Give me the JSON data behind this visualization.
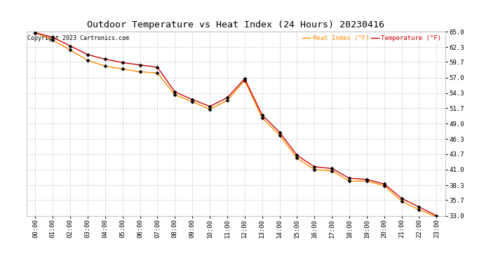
{
  "title": "Outdoor Temperature vs Heat Index (24 Hours) 20230416",
  "copyright": "Copyright 2023 Cartronics.com",
  "legend_heat_index": "Heat Index (°F)",
  "legend_temperature": "Temperature (°F)",
  "x_labels": [
    "00:00",
    "01:00",
    "02:00",
    "03:00",
    "04:00",
    "05:00",
    "06:00",
    "07:00",
    "08:00",
    "09:00",
    "10:00",
    "11:00",
    "12:00",
    "13:00",
    "14:00",
    "15:00",
    "16:00",
    "17:00",
    "18:00",
    "19:00",
    "20:00",
    "21:00",
    "22:00",
    "23:00"
  ],
  "temperature": [
    64.8,
    64.0,
    62.5,
    61.0,
    60.2,
    59.6,
    59.2,
    58.8,
    54.5,
    53.2,
    52.0,
    53.5,
    56.8,
    50.5,
    47.5,
    43.5,
    41.5,
    41.2,
    39.5,
    39.3,
    38.5,
    36.0,
    34.5,
    33.0
  ],
  "heat_index": [
    64.8,
    63.5,
    61.8,
    60.0,
    59.0,
    58.5,
    58.0,
    57.8,
    54.0,
    52.8,
    51.5,
    53.0,
    56.5,
    50.0,
    47.0,
    43.0,
    41.0,
    40.8,
    39.0,
    39.0,
    38.2,
    35.5,
    34.0,
    32.8
  ],
  "ylim_min": 33.0,
  "ylim_max": 65.0,
  "yticks": [
    33.0,
    35.7,
    38.3,
    41.0,
    43.7,
    46.3,
    49.0,
    51.7,
    54.3,
    57.0,
    59.7,
    62.3,
    65.0
  ],
  "temp_color": "#cc0000",
  "heat_index_color": "#ff8c00",
  "background_color": "#ffffff",
  "grid_color": "#c8c8c8",
  "title_color": "#000000",
  "marker_color": "#000000",
  "title_fontsize": 9.5,
  "tick_fontsize": 6.5,
  "legend_fontsize": 6.5,
  "copyright_fontsize": 6.0
}
